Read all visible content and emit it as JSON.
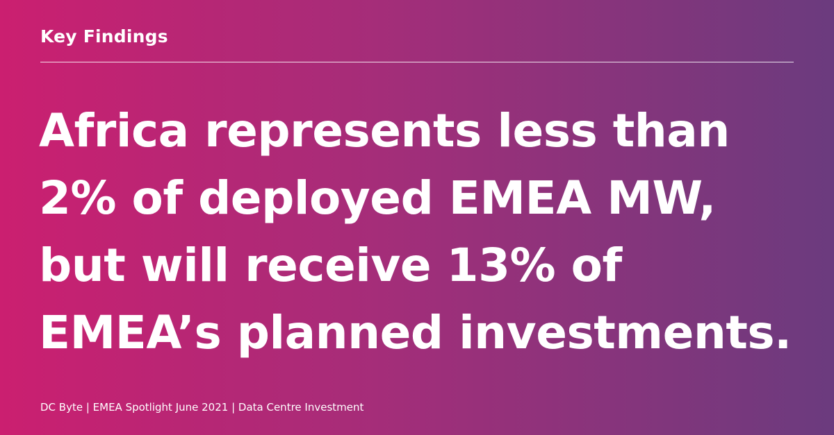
{
  "header": {
    "title": "Key Findings"
  },
  "headline": {
    "lines": [
      "Africa represents less than",
      "2% of deployed EMEA MW,",
      "but will receive 13% of",
      "EMEA’s planned investments."
    ]
  },
  "footer": {
    "text": "DC Byte | EMEA Spotlight June 2021 | Data Centre Investment"
  }
}
